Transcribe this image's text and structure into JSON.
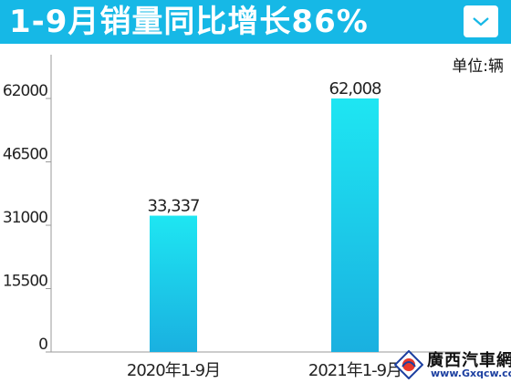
{
  "header": {
    "title": "1-9月销量同比增长86%",
    "dropdown_icon": "chevron-down-icon"
  },
  "unit_label": "单位:辆",
  "watermark": {
    "name": "廣西汽車網",
    "url": "www.Gxqcw.com"
  },
  "colors": {
    "header_bg": "#16b8e6",
    "bar_top": "#1ee6f2",
    "bar_bottom": "#1ab0e0"
  },
  "chart_data": {
    "type": "bar",
    "categories": [
      "2020年1-9月",
      "2021年1-9月"
    ],
    "values": [
      33337,
      62008
    ],
    "value_labels": [
      "33,337",
      "62,008"
    ],
    "yticks": [
      0,
      15500,
      31000,
      46500,
      62000
    ],
    "ylim": [
      0,
      71000
    ],
    "grid": false
  }
}
